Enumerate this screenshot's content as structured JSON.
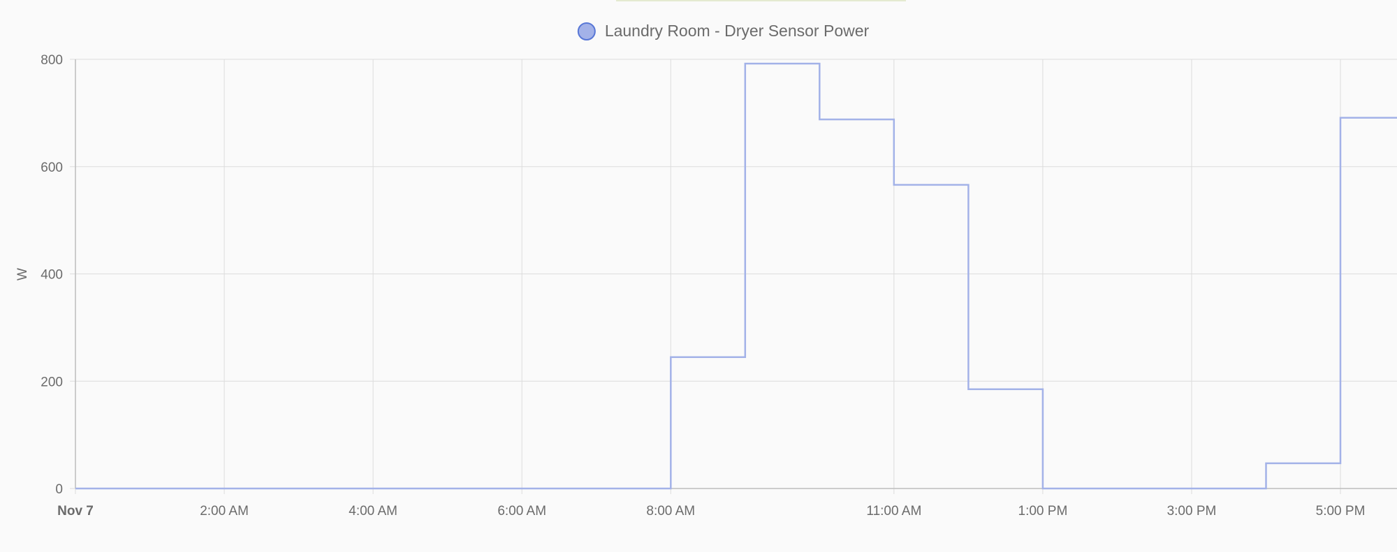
{
  "chart_data": {
    "type": "line",
    "step": true,
    "series": [
      {
        "name": "Laundry Room - Dryer Sensor Power",
        "color": "#5877d6",
        "fill": "#a3b2e8",
        "points": [
          {
            "x": 0,
            "y": 0
          },
          {
            "x": 8,
            "y": 0
          },
          {
            "x": 8,
            "y": 245
          },
          {
            "x": 9,
            "y": 245
          },
          {
            "x": 9,
            "y": 792
          },
          {
            "x": 10,
            "y": 792
          },
          {
            "x": 10,
            "y": 688
          },
          {
            "x": 11,
            "y": 688
          },
          {
            "x": 11,
            "y": 566
          },
          {
            "x": 12,
            "y": 566
          },
          {
            "x": 12,
            "y": 185
          },
          {
            "x": 13,
            "y": 185
          },
          {
            "x": 13,
            "y": 0
          },
          {
            "x": 16,
            "y": 0
          },
          {
            "x": 16,
            "y": 47
          },
          {
            "x": 17,
            "y": 47
          },
          {
            "x": 17,
            "y": 691
          },
          {
            "x": 17.76,
            "y": 691
          }
        ]
      }
    ],
    "x_ticks": [
      {
        "x": 0,
        "label": "Nov 7",
        "bold": true
      },
      {
        "x": 2,
        "label": "2:00 AM"
      },
      {
        "x": 4,
        "label": "4:00 AM"
      },
      {
        "x": 6,
        "label": "6:00 AM"
      },
      {
        "x": 8,
        "label": "8:00 AM"
      },
      {
        "x": 11,
        "label": "11:00 AM"
      },
      {
        "x": 13,
        "label": "1:00 PM"
      },
      {
        "x": 15,
        "label": "3:00 PM"
      },
      {
        "x": 17,
        "label": "5:00 PM"
      }
    ],
    "y_ticks": [
      0,
      200,
      400,
      600,
      800
    ],
    "ylabel": "W",
    "xlim": [
      0,
      17.76
    ],
    "ylim": [
      0,
      800
    ],
    "grid": true,
    "legend_position": "top-center",
    "colors": {
      "grid": "#dcdcdc",
      "axis": "#bdbdbd",
      "text": "#6b6b6b"
    }
  }
}
